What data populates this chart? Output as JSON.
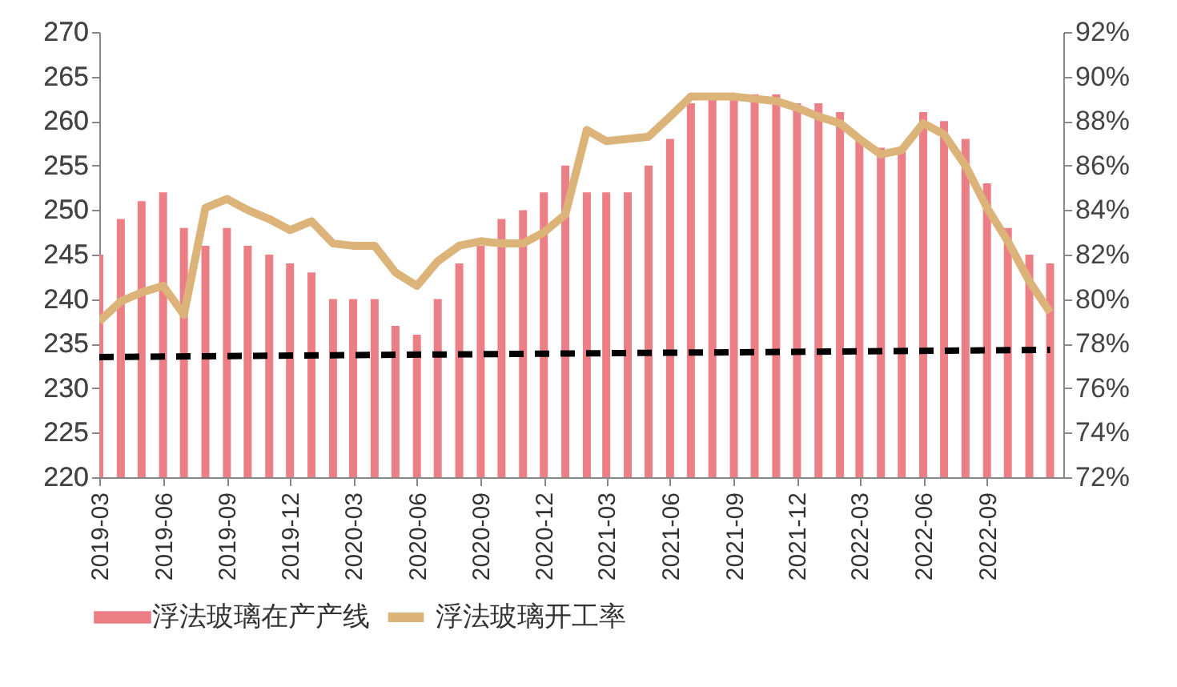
{
  "chart_data": {
    "type": "bar",
    "x": [
      "2019-03",
      "2019-04",
      "2019-05",
      "2019-06",
      "2019-07",
      "2019-08",
      "2019-09",
      "2019-10",
      "2019-11",
      "2019-12",
      "2020-01",
      "2020-02",
      "2020-03",
      "2020-04",
      "2020-05",
      "2020-06",
      "2020-07",
      "2020-08",
      "2020-09",
      "2020-10",
      "2020-11",
      "2020-12",
      "2021-01",
      "2021-02",
      "2021-03",
      "2021-04",
      "2021-05",
      "2021-06",
      "2021-07",
      "2021-08",
      "2021-09",
      "2021-10",
      "2021-11",
      "2021-12",
      "2022-01",
      "2022-02",
      "2022-03",
      "2022-04",
      "2022-05",
      "2022-06",
      "2022-07",
      "2022-08",
      "2022-09",
      "2022-10",
      "2022-11",
      "2022-12"
    ],
    "series": [
      {
        "name": "浮法玻璃在产产线",
        "color": "#ec7f86",
        "values": [
          245,
          249,
          251,
          252,
          248,
          246,
          248,
          246,
          245,
          244,
          243,
          240,
          240,
          240,
          237,
          236,
          240,
          244,
          246,
          249,
          250,
          252,
          255,
          252,
          252,
          252,
          255,
          258,
          262,
          263,
          263,
          263,
          263,
          262,
          262,
          261,
          258,
          257,
          257,
          261,
          260,
          258,
          253,
          248,
          245,
          244
        ]
      },
      {
        "name": "浮法玻璃开工率",
        "type": "line",
        "axis": "y2",
        "color": "#dcb47a",
        "values": [
          79.0,
          79.9,
          80.3,
          80.6,
          79.3,
          84.1,
          84.5,
          84.0,
          83.6,
          83.1,
          83.5,
          82.5,
          82.4,
          82.4,
          81.2,
          80.6,
          81.7,
          82.4,
          82.6,
          82.5,
          82.5,
          83.0,
          83.8,
          87.6,
          87.1,
          87.2,
          87.3,
          88.2,
          89.1,
          89.1,
          89.1,
          89.0,
          88.9,
          88.6,
          88.2,
          87.9,
          87.2,
          86.5,
          86.7,
          87.9,
          87.4,
          86.0,
          84.1,
          82.6,
          80.8,
          79.4
        ]
      },
      {
        "type": "line",
        "color": "#000000",
        "line_style": "dashed",
        "x": [
          "2019-03",
          "2022-12"
        ],
        "values": [
          233.5,
          234.3
        ]
      }
    ],
    "xlim": [
      "2019-03",
      "2022-12-20"
    ],
    "xticks": [
      "2019-03",
      "2019-06",
      "2019-09",
      "2019-12",
      "2020-03",
      "2020-06",
      "2020-09",
      "2020-12",
      "2021-03",
      "2021-06",
      "2021-09",
      "2021-12",
      "2022-03",
      "2022-06",
      "2022-09"
    ],
    "ylim": [
      220,
      270
    ],
    "yticks": [
      220,
      225,
      230,
      235,
      240,
      245,
      250,
      255,
      260,
      265,
      270
    ],
    "y2lim": [
      72,
      92
    ],
    "y2ticks": [
      {
        "value": 72,
        "label": "72%"
      },
      {
        "value": 74,
        "label": "74%"
      },
      {
        "value": 76,
        "label": "76%"
      },
      {
        "value": 78,
        "label": "78%"
      },
      {
        "value": 80,
        "label": "80%"
      },
      {
        "value": 82,
        "label": "82%"
      },
      {
        "value": 84,
        "label": "84%"
      },
      {
        "value": 86,
        "label": "86%"
      },
      {
        "value": 88,
        "label": "88%"
      },
      {
        "value": 90,
        "label": "90%"
      },
      {
        "value": 92,
        "label": "92%"
      }
    ],
    "legend": "bottom"
  }
}
